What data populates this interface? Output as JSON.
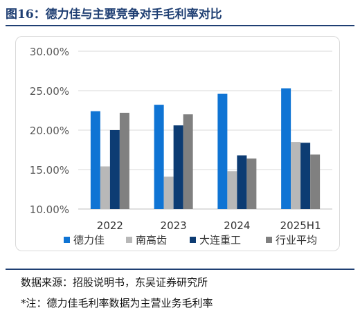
{
  "figure_title": "图16：德力佳与主要竞争对手毛利率对比",
  "source_note": "数据来源：招股说明书，东吴证券研究所",
  "foot_note": "*注：德力佳毛利率数据为主营业务毛利率",
  "chart_data": {
    "type": "bar",
    "title": "",
    "xlabel": "",
    "ylabel": "",
    "ylim": [
      10,
      30
    ],
    "y_ticks": [
      10,
      15,
      20,
      25,
      30
    ],
    "y_tick_labels": [
      "10.00%",
      "15.00%",
      "20.00%",
      "25.00%",
      "30.00%"
    ],
    "categories": [
      "2022",
      "2023",
      "2024",
      "2025H1"
    ],
    "grid": true,
    "legend_position": "bottom",
    "series": [
      {
        "name": "德力佳",
        "color": "#0f74d4",
        "values": [
          22.4,
          23.2,
          24.6,
          25.3
        ]
      },
      {
        "name": "南高齿",
        "color": "#b8b8b8",
        "values": [
          15.4,
          14.1,
          14.8,
          18.5
        ]
      },
      {
        "name": "大连重工",
        "color": "#0d3c73",
        "values": [
          20.0,
          20.6,
          16.8,
          18.4
        ]
      },
      {
        "name": "行业平均",
        "color": "#808080",
        "values": [
          22.2,
          22.0,
          16.4,
          16.9
        ]
      }
    ]
  }
}
